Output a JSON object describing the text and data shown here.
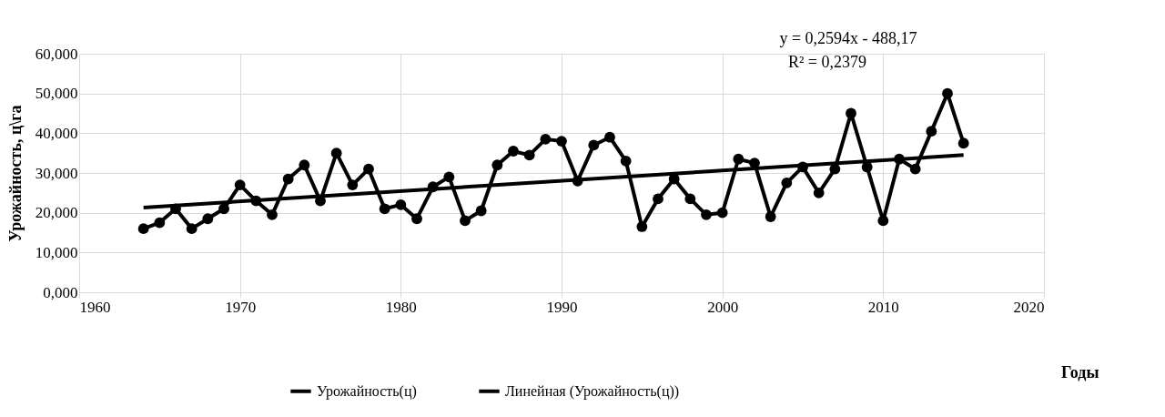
{
  "chart_data": {
    "type": "line",
    "xlabel": "Годы",
    "ylabel": "Урожайность, ц\\га",
    "x": [
      1964,
      1965,
      1966,
      1967,
      1968,
      1969,
      1970,
      1971,
      1972,
      1973,
      1974,
      1975,
      1976,
      1977,
      1978,
      1979,
      1980,
      1981,
      1982,
      1983,
      1984,
      1985,
      1986,
      1987,
      1988,
      1989,
      1990,
      1991,
      1992,
      1993,
      1994,
      1995,
      1996,
      1997,
      1998,
      1999,
      2000,
      2001,
      2002,
      2003,
      2004,
      2005,
      2006,
      2007,
      2008,
      2009,
      2010,
      2011,
      2012,
      2013,
      2014,
      2015
    ],
    "series": [
      {
        "name": "Урожайность(ц)",
        "color": "#000000",
        "marker": "circle",
        "values": [
          16,
          17.5,
          21,
          16,
          18.5,
          21,
          27,
          23,
          19.5,
          28.5,
          32,
          23,
          35,
          27,
          31,
          21,
          22,
          18.5,
          26.5,
          29,
          18,
          20.5,
          32,
          35.5,
          34.5,
          38.5,
          38,
          28,
          37,
          39,
          33,
          16.5,
          23.5,
          28.5,
          23.5,
          19.5,
          20,
          33.5,
          32.5,
          19,
          27.5,
          31.5,
          25,
          31,
          45,
          31.5,
          18,
          33.5,
          31,
          40.5,
          50,
          37.5
        ]
      },
      {
        "name": "Линейная (Урожайность(ц))",
        "type": "line",
        "color": "#000000",
        "marker": "none",
        "x": [
          1964,
          2015
        ],
        "values": [
          21.3,
          34.5
        ]
      }
    ],
    "xlim": [
      1960,
      2020
    ],
    "xticks": [
      1960,
      1970,
      1980,
      1990,
      2000,
      2010,
      2020
    ],
    "ylim": [
      0,
      60
    ],
    "yticks": [
      {
        "value": 0,
        "label": "0,000"
      },
      {
        "value": 10,
        "label": "10,000"
      },
      {
        "value": 20,
        "label": "20,000"
      },
      {
        "value": 30,
        "label": "30,000"
      },
      {
        "value": 40,
        "label": "40,000"
      },
      {
        "value": 50,
        "label": "50,000"
      },
      {
        "value": 60,
        "label": "60,000"
      }
    ],
    "annotations": [
      "y = 0,2594x - 488,17",
      "R² = 0,2379"
    ],
    "grid": true,
    "legend": "bottom",
    "line_style": "solid"
  }
}
